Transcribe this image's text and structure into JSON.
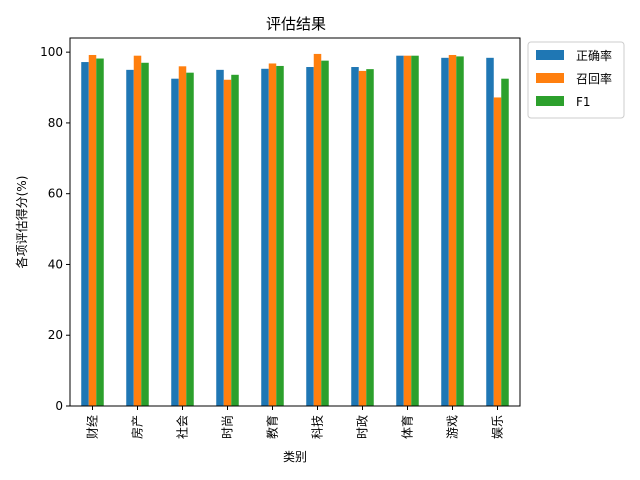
{
  "chart_data": {
    "type": "bar",
    "title": "评估结果",
    "xlabel": "类别",
    "ylabel": "各项评估得分(%)",
    "ylim": [
      0,
      104
    ],
    "yticks": [
      0,
      20,
      40,
      60,
      80,
      100
    ],
    "grid": false,
    "legend_position": "top-right-outside",
    "categories": [
      "财经",
      "房产",
      "社会",
      "时尚",
      "教育",
      "科技",
      "时政",
      "体育",
      "游戏",
      "娱乐"
    ],
    "series": [
      {
        "name": "正确率",
        "color": "#1f77b4",
        "values": [
          97.2,
          95.0,
          92.5,
          95.0,
          95.3,
          95.8,
          95.8,
          99.0,
          98.4,
          98.4
        ]
      },
      {
        "name": "召回率",
        "color": "#ff7f0e",
        "values": [
          99.2,
          99.0,
          96.0,
          92.2,
          96.8,
          99.5,
          94.7,
          99.0,
          99.2,
          87.2
        ]
      },
      {
        "name": "F1",
        "color": "#2ca02c",
        "values": [
          98.2,
          97.0,
          94.2,
          93.6,
          96.1,
          97.6,
          95.2,
          99.0,
          98.8,
          92.5
        ]
      }
    ]
  }
}
